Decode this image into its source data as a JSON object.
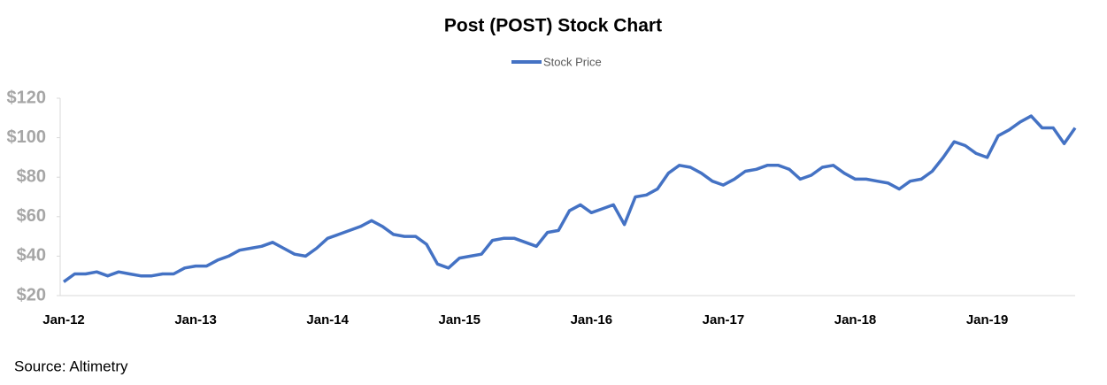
{
  "chart_data": {
    "type": "line",
    "title": "Post (POST) Stock Chart",
    "source": "Source: Altimetry",
    "categories": [
      "Jan-12",
      null,
      null,
      null,
      null,
      null,
      null,
      null,
      null,
      null,
      null,
      null,
      "Jan-13",
      null,
      null,
      null,
      null,
      null,
      null,
      null,
      null,
      null,
      null,
      null,
      "Jan-14",
      null,
      null,
      null,
      null,
      null,
      null,
      null,
      null,
      null,
      null,
      null,
      "Jan-15",
      null,
      null,
      null,
      null,
      null,
      null,
      null,
      null,
      null,
      null,
      null,
      "Jan-16",
      null,
      null,
      null,
      null,
      null,
      null,
      null,
      null,
      null,
      null,
      null,
      "Jan-17",
      null,
      null,
      null,
      null,
      null,
      null,
      null,
      null,
      null,
      null,
      null,
      "Jan-18",
      null,
      null,
      null,
      null,
      null,
      null,
      null,
      null,
      null,
      null,
      null,
      "Jan-19",
      null,
      null,
      null,
      null,
      null,
      null,
      null,
      null
    ],
    "series": [
      {
        "name": "Stock Price",
        "color": "#4472c4",
        "values": [
          27,
          31,
          31,
          32,
          30,
          32,
          31,
          30,
          30,
          31,
          31,
          34,
          35,
          35,
          38,
          40,
          43,
          44,
          45,
          47,
          44,
          41,
          40,
          44,
          49,
          51,
          53,
          55,
          58,
          55,
          51,
          50,
          50,
          46,
          36,
          34,
          39,
          40,
          41,
          48,
          49,
          49,
          47,
          45,
          52,
          53,
          63,
          66,
          62,
          64,
          66,
          56,
          70,
          71,
          74,
          82,
          86,
          85,
          82,
          78,
          76,
          79,
          83,
          84,
          86,
          86,
          84,
          79,
          81,
          85,
          86,
          82,
          79,
          79,
          78,
          77,
          74,
          78,
          79,
          83,
          90,
          98,
          96,
          92,
          90,
          101,
          104,
          108,
          111,
          105,
          105,
          97,
          105
        ]
      }
    ],
    "ylim": [
      20,
      120
    ],
    "yticks": [
      {
        "value": 20,
        "label": "$20"
      },
      {
        "value": 40,
        "label": "$40"
      },
      {
        "value": 60,
        "label": "$60"
      },
      {
        "value": 80,
        "label": "$80"
      },
      {
        "value": 100,
        "label": "$100"
      },
      {
        "value": 120,
        "label": "$120"
      }
    ],
    "legend": "top"
  }
}
